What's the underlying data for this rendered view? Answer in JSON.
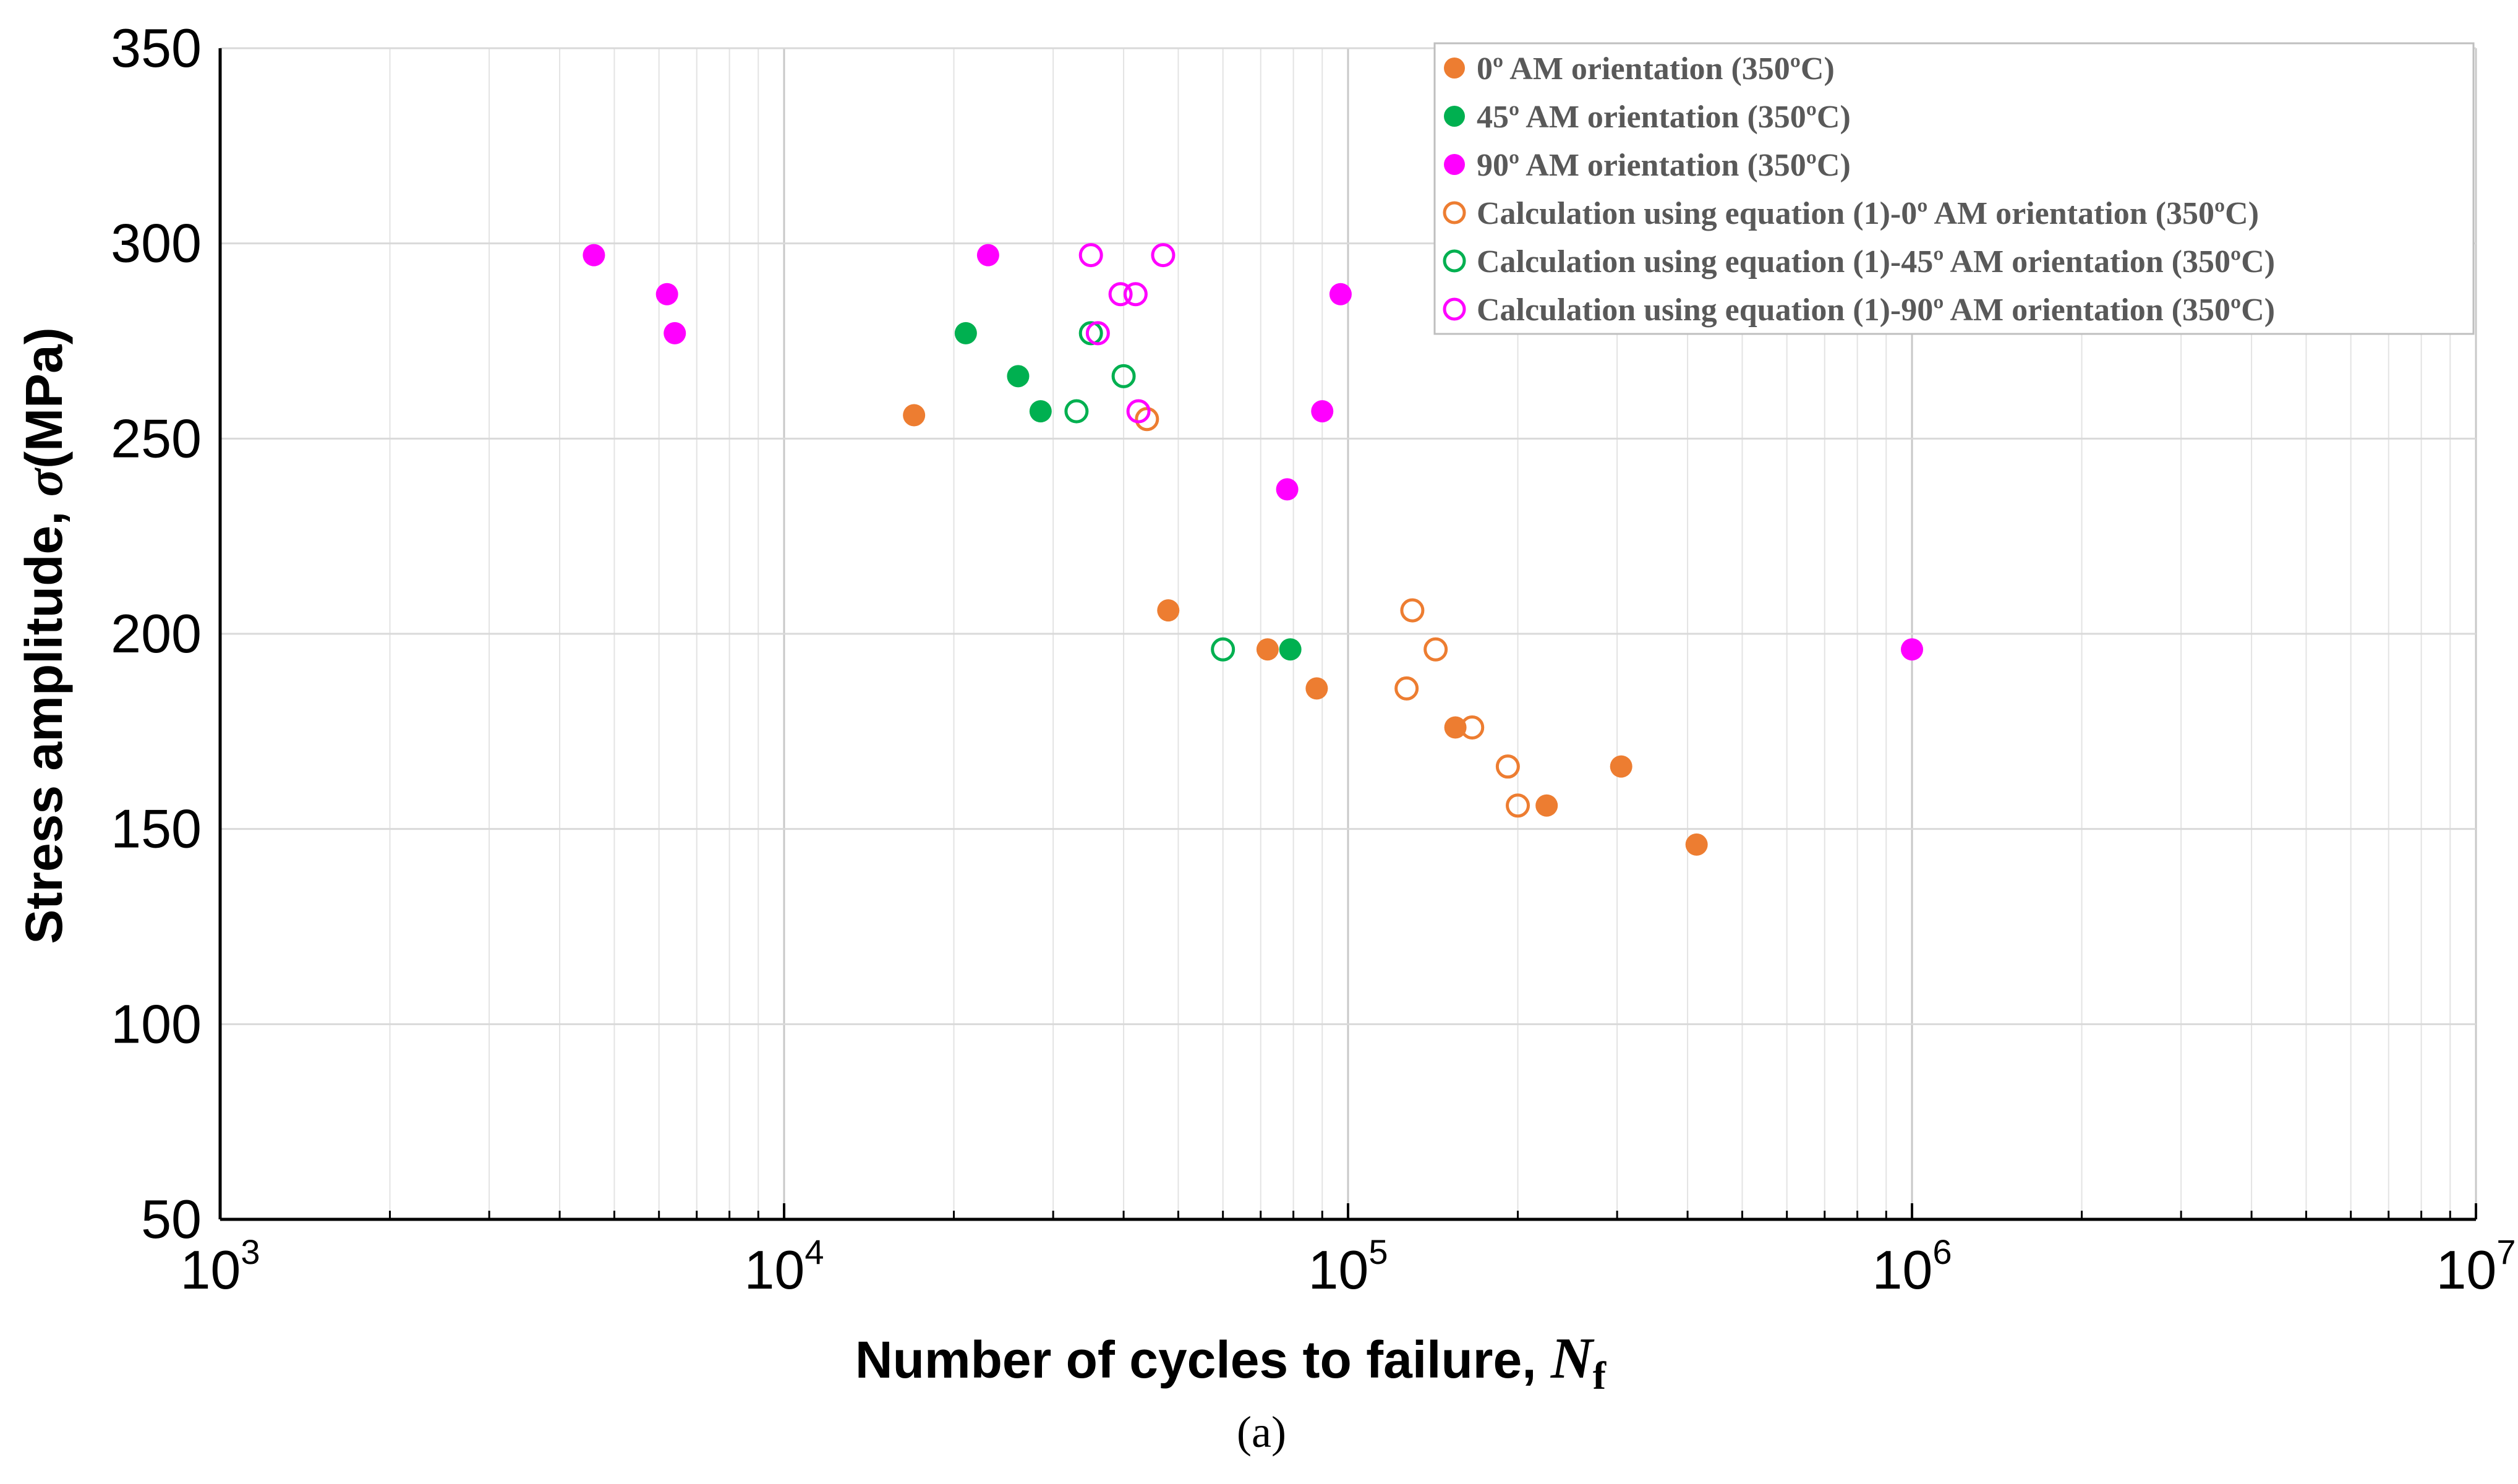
{
  "chart_data": {
    "type": "scatter",
    "xscale": "log",
    "xlim": [
      1000,
      10000000
    ],
    "ylim": [
      50,
      350
    ],
    "yticks": [
      50,
      100,
      150,
      200,
      250,
      300,
      350
    ],
    "xticks": [
      {
        "base": "10",
        "exp": "3",
        "value": 1000
      },
      {
        "base": "10",
        "exp": "4",
        "value": 10000
      },
      {
        "base": "10",
        "exp": "5",
        "value": 100000
      },
      {
        "base": "10",
        "exp": "6",
        "value": 1000000
      },
      {
        "base": "10",
        "exp": "7",
        "value": 10000000
      }
    ],
    "ylabel_main": "Stress amplitude, ",
    "ylabel_symbol": "σ",
    "ylabel_unit": "(MPa)",
    "xlabel_main": "Number of cycles to failure, ",
    "xlabel_symbol": "N",
    "xlabel_sub": "f",
    "caption": "(a)",
    "grid": true,
    "legend_position": "top-right",
    "series": [
      {
        "name": "0º AM orientation (350ºC)",
        "color": "#ED7D31",
        "filled": true,
        "points": [
          [
            17000,
            256
          ],
          [
            48000,
            206
          ],
          [
            72000,
            196
          ],
          [
            88000,
            186
          ],
          [
            155000,
            176
          ],
          [
            225000,
            156
          ],
          [
            305000,
            166
          ],
          [
            415000,
            146
          ]
        ]
      },
      {
        "name": "45º AM orientation (350ºC)",
        "color": "#00B050",
        "filled": true,
        "points": [
          [
            21000,
            277
          ],
          [
            26000,
            266
          ],
          [
            28500,
            257
          ],
          [
            79000,
            196
          ]
        ]
      },
      {
        "name": "90º AM orientation (350ºC)",
        "color": "#FF00FF",
        "filled": true,
        "points": [
          [
            4600,
            297
          ],
          [
            6200,
            287
          ],
          [
            6400,
            277
          ],
          [
            23000,
            297
          ],
          [
            78000,
            237
          ],
          [
            90000,
            257
          ],
          [
            97000,
            287
          ],
          [
            1000000,
            196
          ]
        ]
      },
      {
        "name": "Calculation using equation (1)-0º AM orientation (350ºC)",
        "color": "#ED7D31",
        "filled": false,
        "points": [
          [
            44000,
            255
          ],
          [
            130000,
            206
          ],
          [
            143000,
            196
          ],
          [
            127000,
            186
          ],
          [
            166000,
            176
          ],
          [
            192000,
            166
          ],
          [
            200000,
            156
          ]
        ]
      },
      {
        "name": "Calculation using equation (1)-45º AM orientation (350ºC)",
        "color": "#00B050",
        "filled": false,
        "points": [
          [
            33000,
            257
          ],
          [
            35000,
            277
          ],
          [
            40000,
            266
          ],
          [
            60000,
            196
          ]
        ]
      },
      {
        "name": "Calculation using equation (1)-90º AM orientation (350ºC)",
        "color": "#FF00FF",
        "filled": false,
        "points": [
          [
            35000,
            297
          ],
          [
            36000,
            277
          ],
          [
            39500,
            287
          ],
          [
            42000,
            287
          ],
          [
            42500,
            257
          ],
          [
            47000,
            297
          ]
        ]
      }
    ]
  }
}
